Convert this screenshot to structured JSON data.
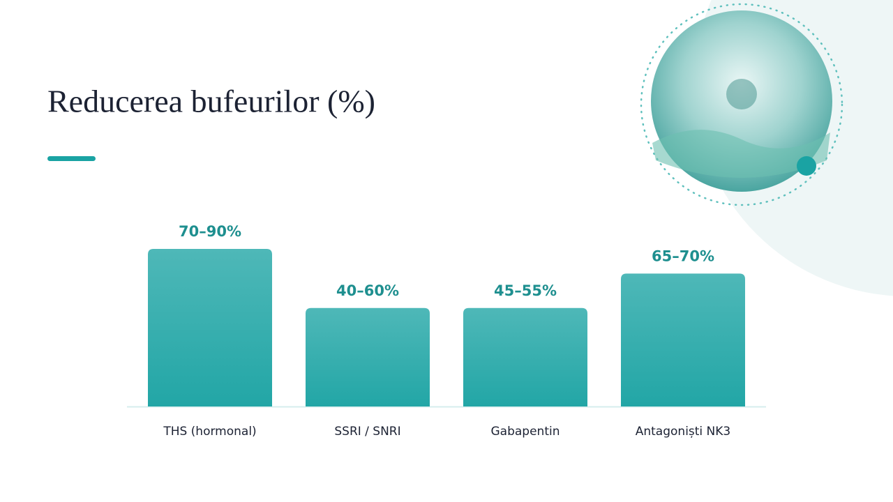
{
  "chart_data": {
    "type": "bar",
    "title": "Reducerea bufeurilor (%)",
    "categories": [
      "THS (hormonal)",
      "SSRI / SNRI",
      "Gabapentin",
      "Antagoniști NK3"
    ],
    "values": [
      80,
      50,
      50,
      67.5
    ],
    "value_labels": [
      "70–90%",
      "40–60%",
      "45–55%",
      "65–70%"
    ],
    "color": "#22a6a6"
  }
}
